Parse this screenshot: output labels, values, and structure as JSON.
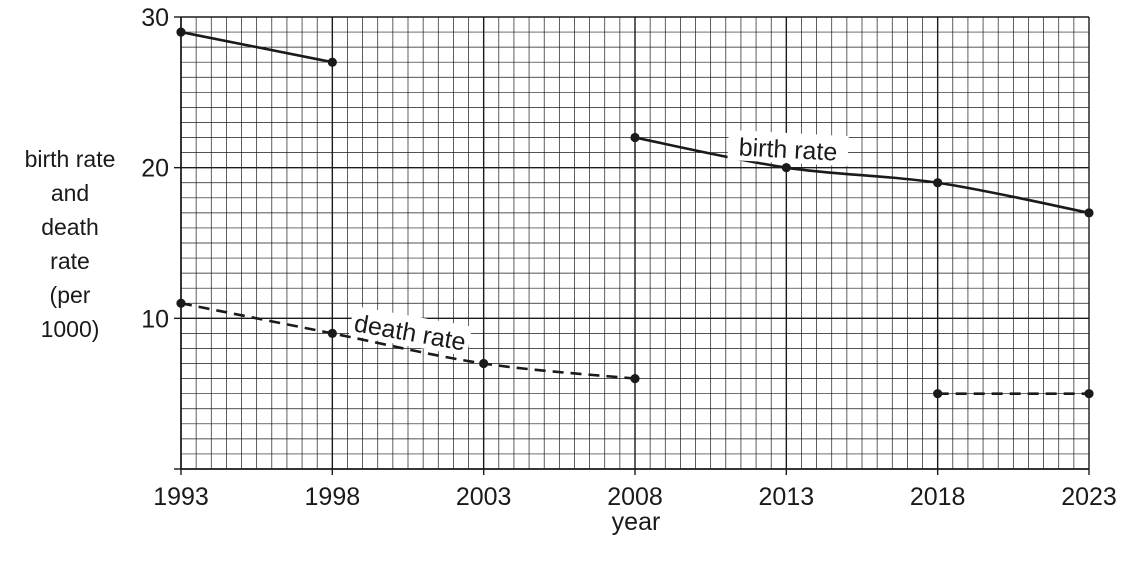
{
  "chart_data": {
    "type": "line",
    "xlabel": "year",
    "ylabel_lines": [
      "birth rate",
      "and",
      "death",
      "rate",
      "(per",
      "1000)"
    ],
    "x_ticks": [
      1993,
      1998,
      2003,
      2008,
      2013,
      2018,
      2023
    ],
    "y_ticks": [
      10,
      20,
      30
    ],
    "xlim": [
      1993,
      2023
    ],
    "ylim": [
      0,
      30
    ],
    "grid": true,
    "series": [
      {
        "name": "birth rate",
        "style": "solid",
        "segments": [
          [
            [
              1993,
              29
            ],
            [
              1998,
              27
            ]
          ],
          [
            [
              2008,
              22
            ],
            [
              2013,
              20
            ],
            [
              2018,
              19
            ],
            [
              2023,
              17
            ]
          ]
        ]
      },
      {
        "name": "death rate",
        "style": "dashed",
        "segments": [
          [
            [
              1993,
              11
            ],
            [
              1998,
              9
            ],
            [
              2003,
              7
            ],
            [
              2008,
              6
            ]
          ],
          [
            [
              2018,
              5
            ],
            [
              2023,
              5
            ]
          ]
        ]
      }
    ],
    "annotations": [
      {
        "text": "birth rate",
        "series": "birth rate"
      },
      {
        "text": "death rate",
        "series": "death rate"
      }
    ]
  },
  "colors": {
    "ink": "#1a1a1a",
    "background": "#ffffff"
  }
}
